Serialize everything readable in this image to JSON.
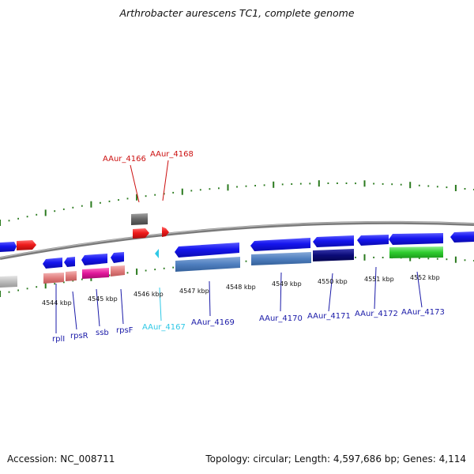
{
  "title": "Arthrobacter aurescens TC1, complete genome",
  "footer": {
    "accession": "Accession: NC_008711",
    "summary": "Topology: circular; Length: 4,597,686 bp; Genes: 4,114"
  },
  "colors": {
    "backbone": "#888888",
    "tick_mark": "#2a7a1e",
    "forward_gene": "#1515ee",
    "reverse_gene": "#1515ee",
    "red_gene": "#ee1c1c",
    "pink_gene": "#e07d7d",
    "magenta_gene": "#e0179a",
    "steelblue_gene": "#4f7fbf",
    "navy_gene": "#0b0b78",
    "green_gene": "#2ecc2e",
    "gray_gene": "#666666",
    "label_blue": "#1a1aa8",
    "label_red": "#cc1111",
    "label_cyan": "#2fc8e6"
  },
  "scale_labels": [
    "4544 kbp",
    "4545 kbp",
    "4546 kbp",
    "4547 kbp",
    "4548 kbp",
    "4549 kbp",
    "4550 kbp",
    "4551 kbp",
    "4552 kbp"
  ],
  "gene_labels": [
    "rplI",
    "rpsR",
    "ssb",
    "rpsF",
    "AAur_4166",
    "AAur_4167",
    "AAur_4168",
    "AAur_4169",
    "AAur_4170",
    "AAur_4171",
    "AAur_4172",
    "AAur_4173"
  ]
}
